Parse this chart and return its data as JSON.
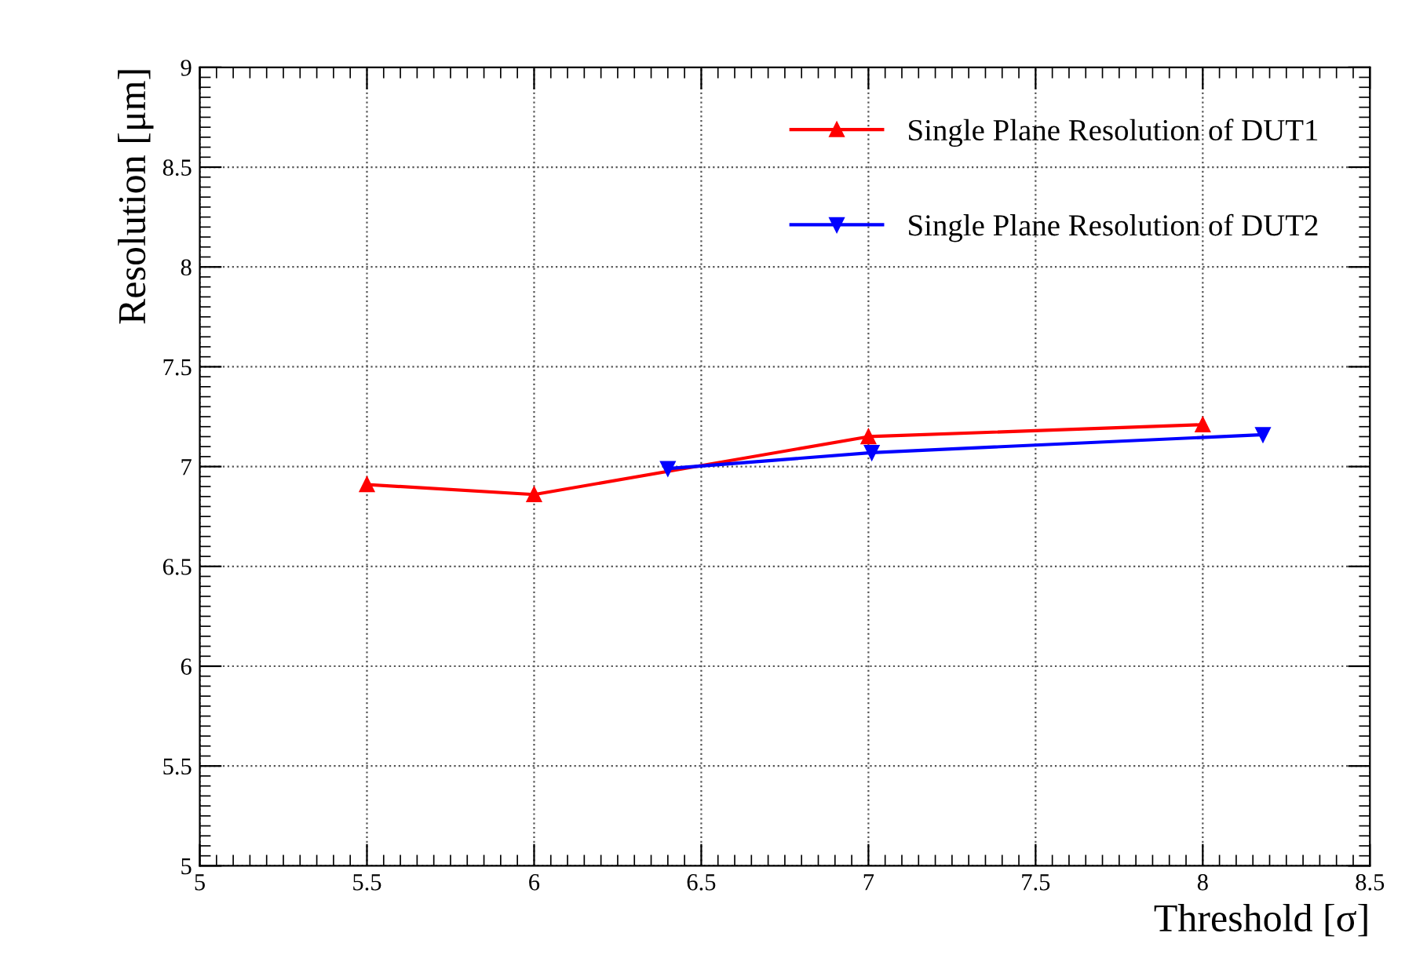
{
  "chart_data": {
    "type": "line",
    "xlabel": "Threshold [σ]",
    "ylabel": "Resolution [μm]",
    "series": [
      {
        "name": "Single Plane Resolution of DUT1",
        "color": "#ff0000",
        "marker": "triangle",
        "x": [
          5.5,
          6,
          7,
          8
        ],
        "values": [
          6.91,
          6.86,
          7.15,
          7.21
        ]
      },
      {
        "name": "Single Plane Resolution of DUT2",
        "color": "#0000ff",
        "marker": "triangle_down",
        "x": [
          6.4,
          7.01,
          8.18
        ],
        "values": [
          6.99,
          7.07,
          7.16
        ]
      }
    ],
    "xlim": [
      5,
      8.5
    ],
    "xticks": [
      5,
      5.5,
      6,
      6.5,
      7,
      7.5,
      8,
      8.5
    ],
    "ylim": [
      5,
      9
    ],
    "yticks": [
      5,
      5.5,
      6,
      6.5,
      7,
      7.5,
      8,
      8.5,
      9
    ],
    "grid": true,
    "legend": "top right"
  }
}
